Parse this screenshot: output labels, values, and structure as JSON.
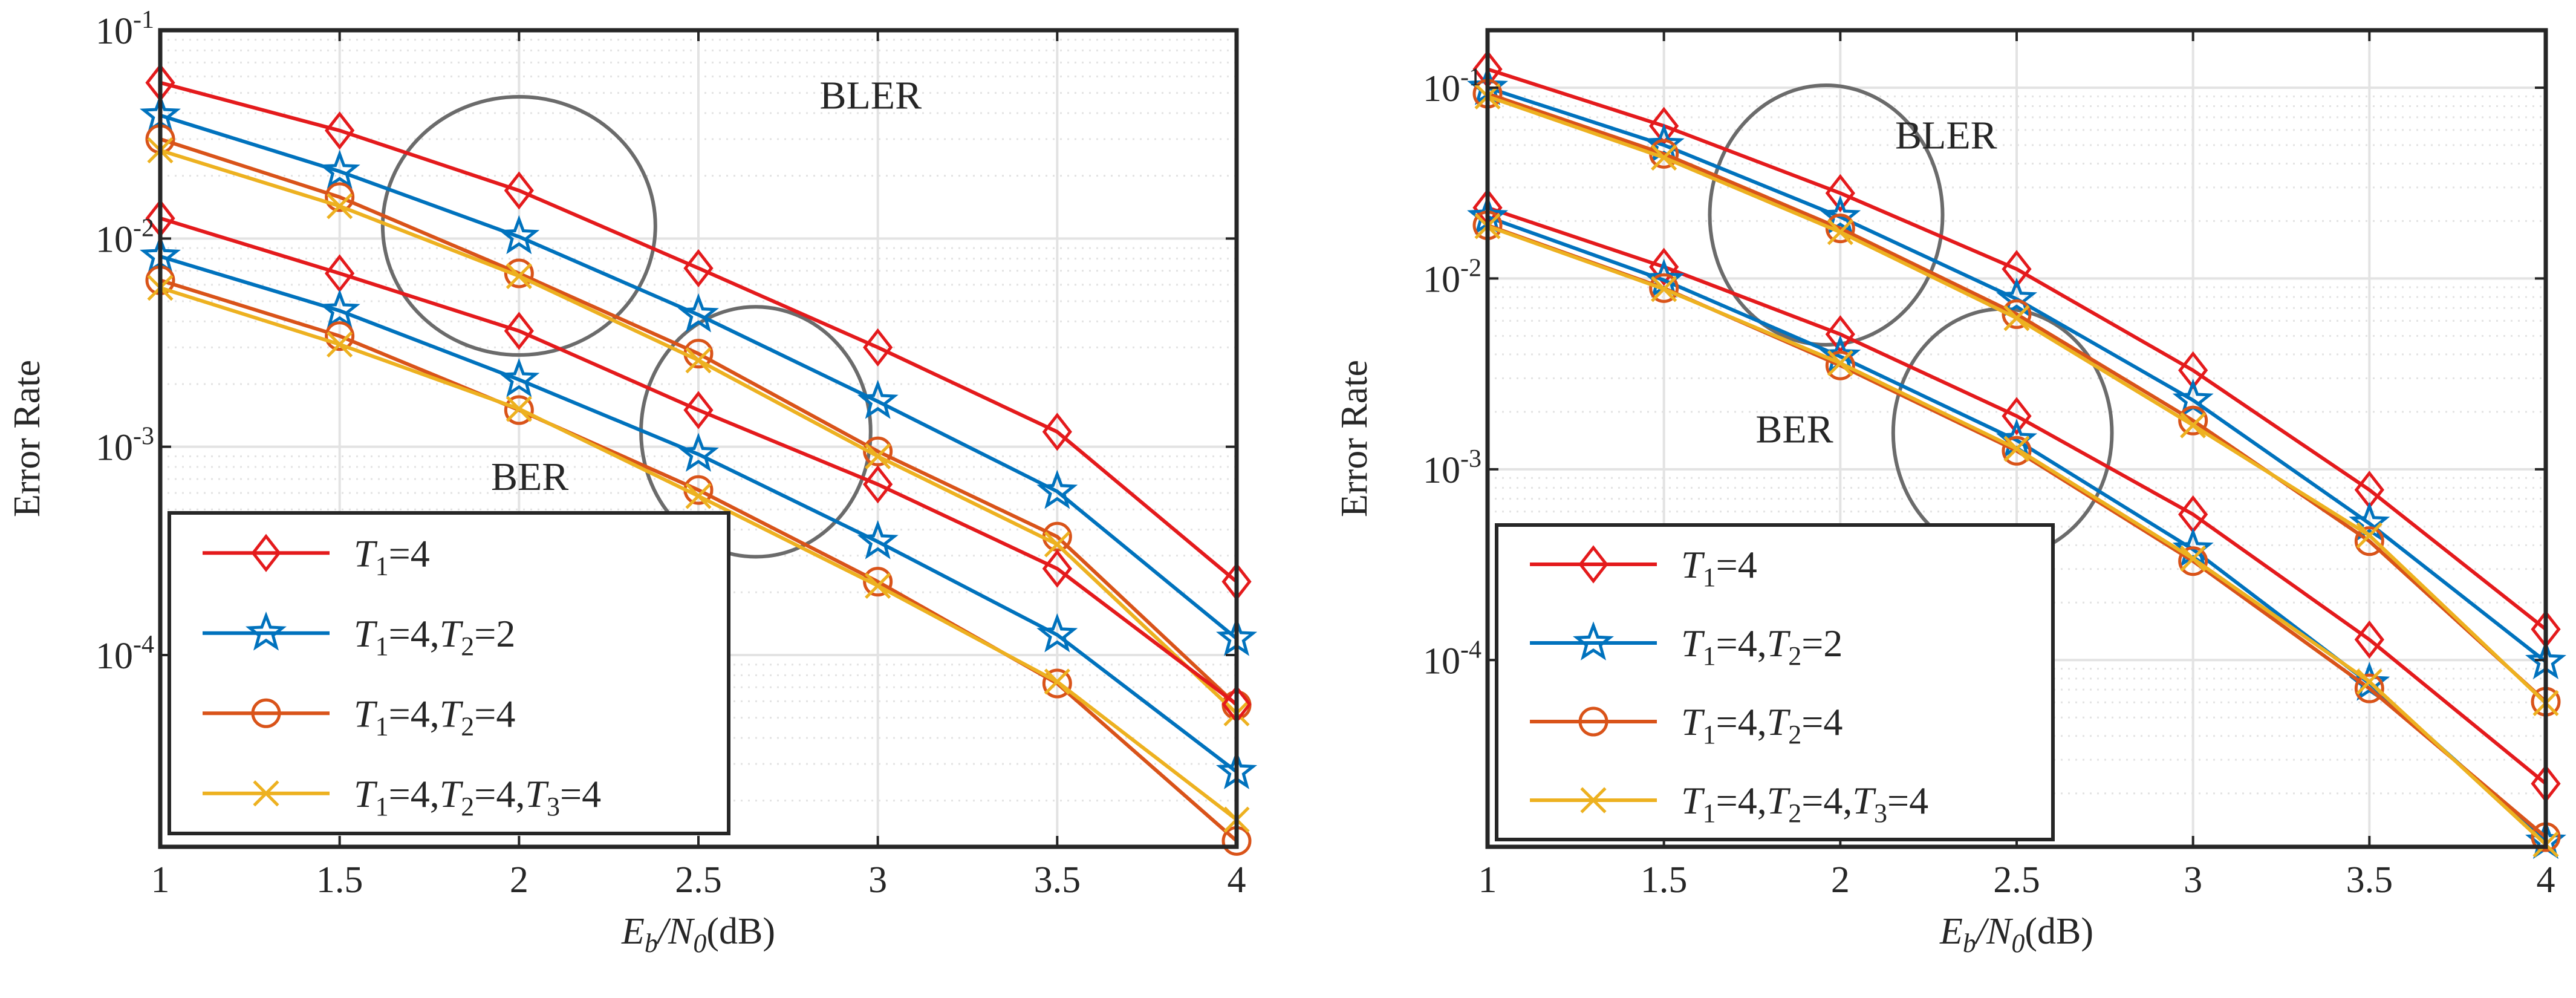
{
  "colors": {
    "t1": "#e41a1c",
    "t1t2_2": "#0072bd",
    "t1t2_4": "#d95319",
    "t1t2t3": "#edb120",
    "grid": "#e3e3e3",
    "axis": "#262626",
    "ellipse": "#6b6b6b"
  },
  "chart_data": [
    {
      "type": "line",
      "scale": "log-y",
      "xlabel": {
        "base": "E",
        "sub1": "b",
        "slash": "/N",
        "sub2": "0",
        "unit": "(dB)"
      },
      "ylabel": "Error Rate",
      "x": [
        1,
        1.5,
        2,
        2.5,
        3,
        3.5,
        4
      ],
      "xlim": [
        1,
        4
      ],
      "ylim": [
        1.2e-05,
        0.1
      ],
      "xticks": [
        "1",
        "1.5",
        "2",
        "2.5",
        "3",
        "3.5",
        "4"
      ],
      "yticks": [
        {
          "value": 0.1,
          "base": "10",
          "exp": "-1"
        },
        {
          "value": 0.01,
          "base": "10",
          "exp": "-2"
        },
        {
          "value": 0.001,
          "base": "10",
          "exp": "-3"
        },
        {
          "value": 0.0001,
          "base": "10",
          "exp": "-4"
        }
      ],
      "annotations": [
        {
          "text": "BLER",
          "x": 2.98,
          "y": 0.042
        },
        {
          "text": "BER",
          "x": 2.03,
          "y": 0.00062
        }
      ],
      "ellipses": [
        {
          "cx": 2.0,
          "cy": 0.0115,
          "rx": 0.38,
          "ry": 0.62
        },
        {
          "cx": 2.66,
          "cy": 0.00118,
          "rx": 0.32,
          "ry": 0.6
        }
      ],
      "legend_position": "bottom-left",
      "series": [
        {
          "key": "t1",
          "group": "BLER",
          "marker": "diamond",
          "values": [
            0.056,
            0.033,
            0.017,
            0.0072,
            0.003,
            0.00118,
            0.000225
          ]
        },
        {
          "key": "t1t2_2",
          "group": "BLER",
          "marker": "star",
          "values": [
            0.039,
            0.021,
            0.0102,
            0.0043,
            0.00165,
            0.00061,
            0.00012
          ]
        },
        {
          "key": "t1t2_4",
          "group": "BLER",
          "marker": "circle",
          "values": [
            0.03,
            0.0158,
            0.0068,
            0.0028,
            0.00095,
            0.00037,
            5.75e-05
          ]
        },
        {
          "key": "t1t2t3",
          "group": "BLER",
          "marker": "x",
          "values": [
            0.0265,
            0.0143,
            0.0066,
            0.0026,
            0.0009,
            0.00034,
            5.25e-05
          ]
        },
        {
          "key": "t1",
          "group": "BER",
          "marker": "diamond",
          "values": [
            0.0125,
            0.0068,
            0.0036,
            0.0015,
            0.00066,
            0.00026,
            5.8e-05
          ]
        },
        {
          "key": "t1t2_2",
          "group": "BER",
          "marker": "star",
          "values": [
            0.0082,
            0.0045,
            0.0021,
            0.00092,
            0.00035,
            0.000125,
            2.75e-05
          ]
        },
        {
          "key": "t1t2_4",
          "group": "BER",
          "marker": "circle",
          "values": [
            0.0063,
            0.0034,
            0.0015,
            0.00062,
            0.000225,
            7.3e-05,
            1.28e-05
          ]
        },
        {
          "key": "t1t2t3",
          "group": "BER",
          "marker": "x",
          "values": [
            0.0058,
            0.0031,
            0.00152,
            0.00058,
            0.000215,
            7.45e-05,
            1.62e-05
          ]
        }
      ]
    },
    {
      "type": "line",
      "scale": "log-y",
      "xlabel": {
        "base": "E",
        "sub1": "b",
        "slash": "/N",
        "sub2": "0",
        "unit": "(dB)"
      },
      "ylabel": "Error Rate",
      "x": [
        1,
        1.5,
        2,
        2.5,
        3,
        3.5,
        4
      ],
      "xlim": [
        1,
        4
      ],
      "ylim": [
        1.05e-05,
        0.2
      ],
      "xticks": [
        "1",
        "1.5",
        "2",
        "2.5",
        "3",
        "3.5",
        "4"
      ],
      "yticks": [
        {
          "value": 0.1,
          "base": "10",
          "exp": "-1"
        },
        {
          "value": 0.01,
          "base": "10",
          "exp": "-2"
        },
        {
          "value": 0.001,
          "base": "10",
          "exp": "-3"
        },
        {
          "value": 0.0001,
          "base": "10",
          "exp": "-4"
        }
      ],
      "annotations": [
        {
          "text": "BLER",
          "x": 2.3,
          "y": 0.048
        },
        {
          "text": "BER",
          "x": 1.87,
          "y": 0.00138
        }
      ],
      "ellipses": [
        {
          "cx": 1.96,
          "cy": 0.0215,
          "rx": 0.33,
          "ry": 0.68
        },
        {
          "cx": 2.46,
          "cy": 0.00155,
          "rx": 0.31,
          "ry": 0.65
        }
      ],
      "legend_position": "bottom-left",
      "series": [
        {
          "key": "t1",
          "group": "BLER",
          "marker": "diamond",
          "values": [
            0.125,
            0.063,
            0.028,
            0.0112,
            0.0033,
            0.00078,
            0.000145
          ]
        },
        {
          "key": "t1t2_2",
          "group": "BLER",
          "marker": "star",
          "values": [
            0.1,
            0.05,
            0.021,
            0.0078,
            0.0023,
            0.00052,
            9.8e-05
          ]
        },
        {
          "key": "t1t2_4",
          "group": "BLER",
          "marker": "circle",
          "values": [
            0.093,
            0.045,
            0.0183,
            0.0065,
            0.0018,
            0.00042,
            6.05e-05
          ]
        },
        {
          "key": "t1t2t3",
          "group": "BLER",
          "marker": "x",
          "values": [
            0.09,
            0.043,
            0.0175,
            0.0062,
            0.0017,
            0.00045,
            5.95e-05
          ]
        },
        {
          "key": "t1",
          "group": "BER",
          "marker": "diamond",
          "values": [
            0.0235,
            0.0115,
            0.0051,
            0.0019,
            0.00058,
            0.000128,
            2.25e-05
          ]
        },
        {
          "key": "t1t2_2",
          "group": "BER",
          "marker": "star",
          "values": [
            0.021,
            0.0098,
            0.0039,
            0.00142,
            0.00038,
            7.55e-05,
            1.12e-05
          ]
        },
        {
          "key": "t1t2_4",
          "group": "BER",
          "marker": "circle",
          "values": [
            0.019,
            0.0089,
            0.0035,
            0.00125,
            0.00033,
            7.1e-05,
            1.18e-05
          ]
        },
        {
          "key": "t1t2t3",
          "group": "BER",
          "marker": "x",
          "values": [
            0.0188,
            0.0088,
            0.0036,
            0.00128,
            0.00034,
            7.7e-05,
            1.08e-05
          ]
        }
      ]
    }
  ],
  "legend": [
    {
      "key": "t1",
      "marker": "diamond",
      "parts": [
        [
          "T",
          "1",
          "=4"
        ]
      ]
    },
    {
      "key": "t1t2_2",
      "marker": "star",
      "parts": [
        [
          "T",
          "1",
          "=4,"
        ],
        [
          "T",
          "2",
          "=2"
        ]
      ]
    },
    {
      "key": "t1t2_4",
      "marker": "circle",
      "parts": [
        [
          "T",
          "1",
          "=4,"
        ],
        [
          "T",
          "2",
          "=4"
        ]
      ]
    },
    {
      "key": "t1t2t3",
      "marker": "x",
      "parts": [
        [
          "T",
          "1",
          "=4,"
        ],
        [
          "T",
          "2",
          "=4,"
        ],
        [
          "T",
          "3",
          "=4"
        ]
      ]
    }
  ]
}
